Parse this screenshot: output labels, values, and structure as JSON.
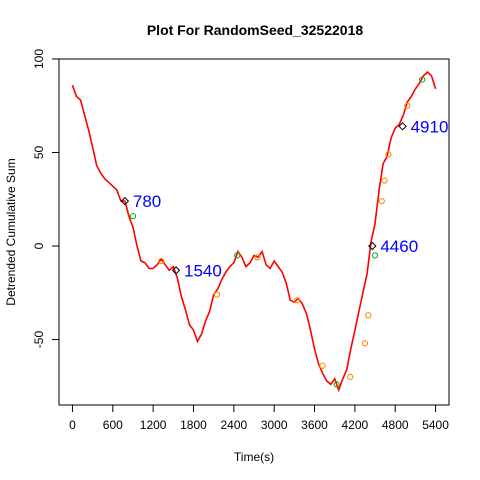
{
  "chart_data": {
    "type": "line",
    "title": "Plot For RandomSeed_32522018",
    "xlabel": "Time(s)",
    "ylabel": "Detrended Cumulative Sum",
    "xlim": [
      -200,
      5600
    ],
    "ylim": [
      -85,
      100
    ],
    "x_ticks": [
      0,
      600,
      1200,
      1800,
      2400,
      3000,
      3600,
      4200,
      4800,
      5400
    ],
    "y_ticks": [
      -50,
      0,
      50,
      100
    ],
    "line_color": "#ff0000",
    "series": [
      {
        "x": [
          0,
          60,
          120,
          180,
          240,
          300,
          360,
          420,
          480,
          540,
          600,
          660,
          720,
          780,
          840,
          900,
          960,
          1020,
          1080,
          1140,
          1200,
          1260,
          1320,
          1380,
          1440,
          1500,
          1560,
          1620,
          1680,
          1740,
          1800,
          1860,
          1920,
          1980,
          2040,
          2100,
          2160,
          2220,
          2280,
          2340,
          2400,
          2460,
          2520,
          2580,
          2640,
          2700,
          2760,
          2820,
          2880,
          2940,
          3000,
          3060,
          3120,
          3180,
          3240,
          3300,
          3360,
          3420,
          3480,
          3540,
          3600,
          3660,
          3720,
          3780,
          3840,
          3900,
          3960,
          4020,
          4080,
          4140,
          4200,
          4260,
          4320,
          4380,
          4440,
          4500,
          4560,
          4620,
          4680,
          4740,
          4800,
          4860,
          4920,
          4980,
          5040,
          5100,
          5160,
          5220,
          5280,
          5340,
          5400
        ],
        "y": [
          86,
          80,
          78,
          70,
          62,
          53,
          43,
          39,
          36,
          34,
          32,
          30,
          24,
          24,
          16,
          10,
          0,
          -8,
          -9,
          -12,
          -12,
          -10,
          -7,
          -10,
          -13,
          -11,
          -17,
          -27,
          -34,
          -42,
          -45,
          -51,
          -47,
          -40,
          -35,
          -26,
          -23,
          -18,
          -14,
          -11,
          -9,
          -3,
          -6,
          -11,
          -9,
          -5,
          -6,
          -3,
          -10,
          -12,
          -8,
          -11,
          -14,
          -20,
          -29,
          -30,
          -28,
          -31,
          -36,
          -45,
          -55,
          -63,
          -68,
          -72,
          -74,
          -71,
          -77,
          -71,
          -66,
          -55,
          -45,
          -35,
          -25,
          -15,
          2,
          12,
          30,
          44,
          48,
          58,
          63,
          65,
          70,
          77,
          80,
          84,
          87,
          91,
          93,
          91,
          84
        ]
      }
    ],
    "marker_points": [
      {
        "x": 900,
        "y": 16,
        "color": "#22aa22"
      },
      {
        "x": 1320,
        "y": -8,
        "color": "#ff8c00"
      },
      {
        "x": 2150,
        "y": -26,
        "color": "#ff8c00"
      },
      {
        "x": 2450,
        "y": -5,
        "color": "#22aa22"
      },
      {
        "x": 2750,
        "y": -6,
        "color": "#ff8c00"
      },
      {
        "x": 3340,
        "y": -29,
        "color": "#ff8c00"
      },
      {
        "x": 3720,
        "y": -64,
        "color": "#ff8c00"
      },
      {
        "x": 3930,
        "y": -74,
        "color": "#22aa22"
      },
      {
        "x": 4130,
        "y": -70,
        "color": "#ff8c00"
      },
      {
        "x": 4350,
        "y": -52,
        "color": "#ff8c00"
      },
      {
        "x": 4400,
        "y": -37,
        "color": "#ff8c00"
      },
      {
        "x": 4500,
        "y": -5,
        "color": "#22aa22"
      },
      {
        "x": 4600,
        "y": 24,
        "color": "#ff8c00"
      },
      {
        "x": 4640,
        "y": 35,
        "color": "#ff8c00"
      },
      {
        "x": 4700,
        "y": 49,
        "color": "#ff8c00"
      },
      {
        "x": 4980,
        "y": 75,
        "color": "#ff8c00"
      },
      {
        "x": 5200,
        "y": 89,
        "color": "#22aa22"
      }
    ],
    "annotations": [
      {
        "label": "780",
        "x": 780,
        "y": 24
      },
      {
        "label": "1540",
        "x": 1540,
        "y": -13
      },
      {
        "label": "4460",
        "x": 4460,
        "y": 0
      },
      {
        "label": "4910",
        "x": 4910,
        "y": 64
      }
    ]
  }
}
